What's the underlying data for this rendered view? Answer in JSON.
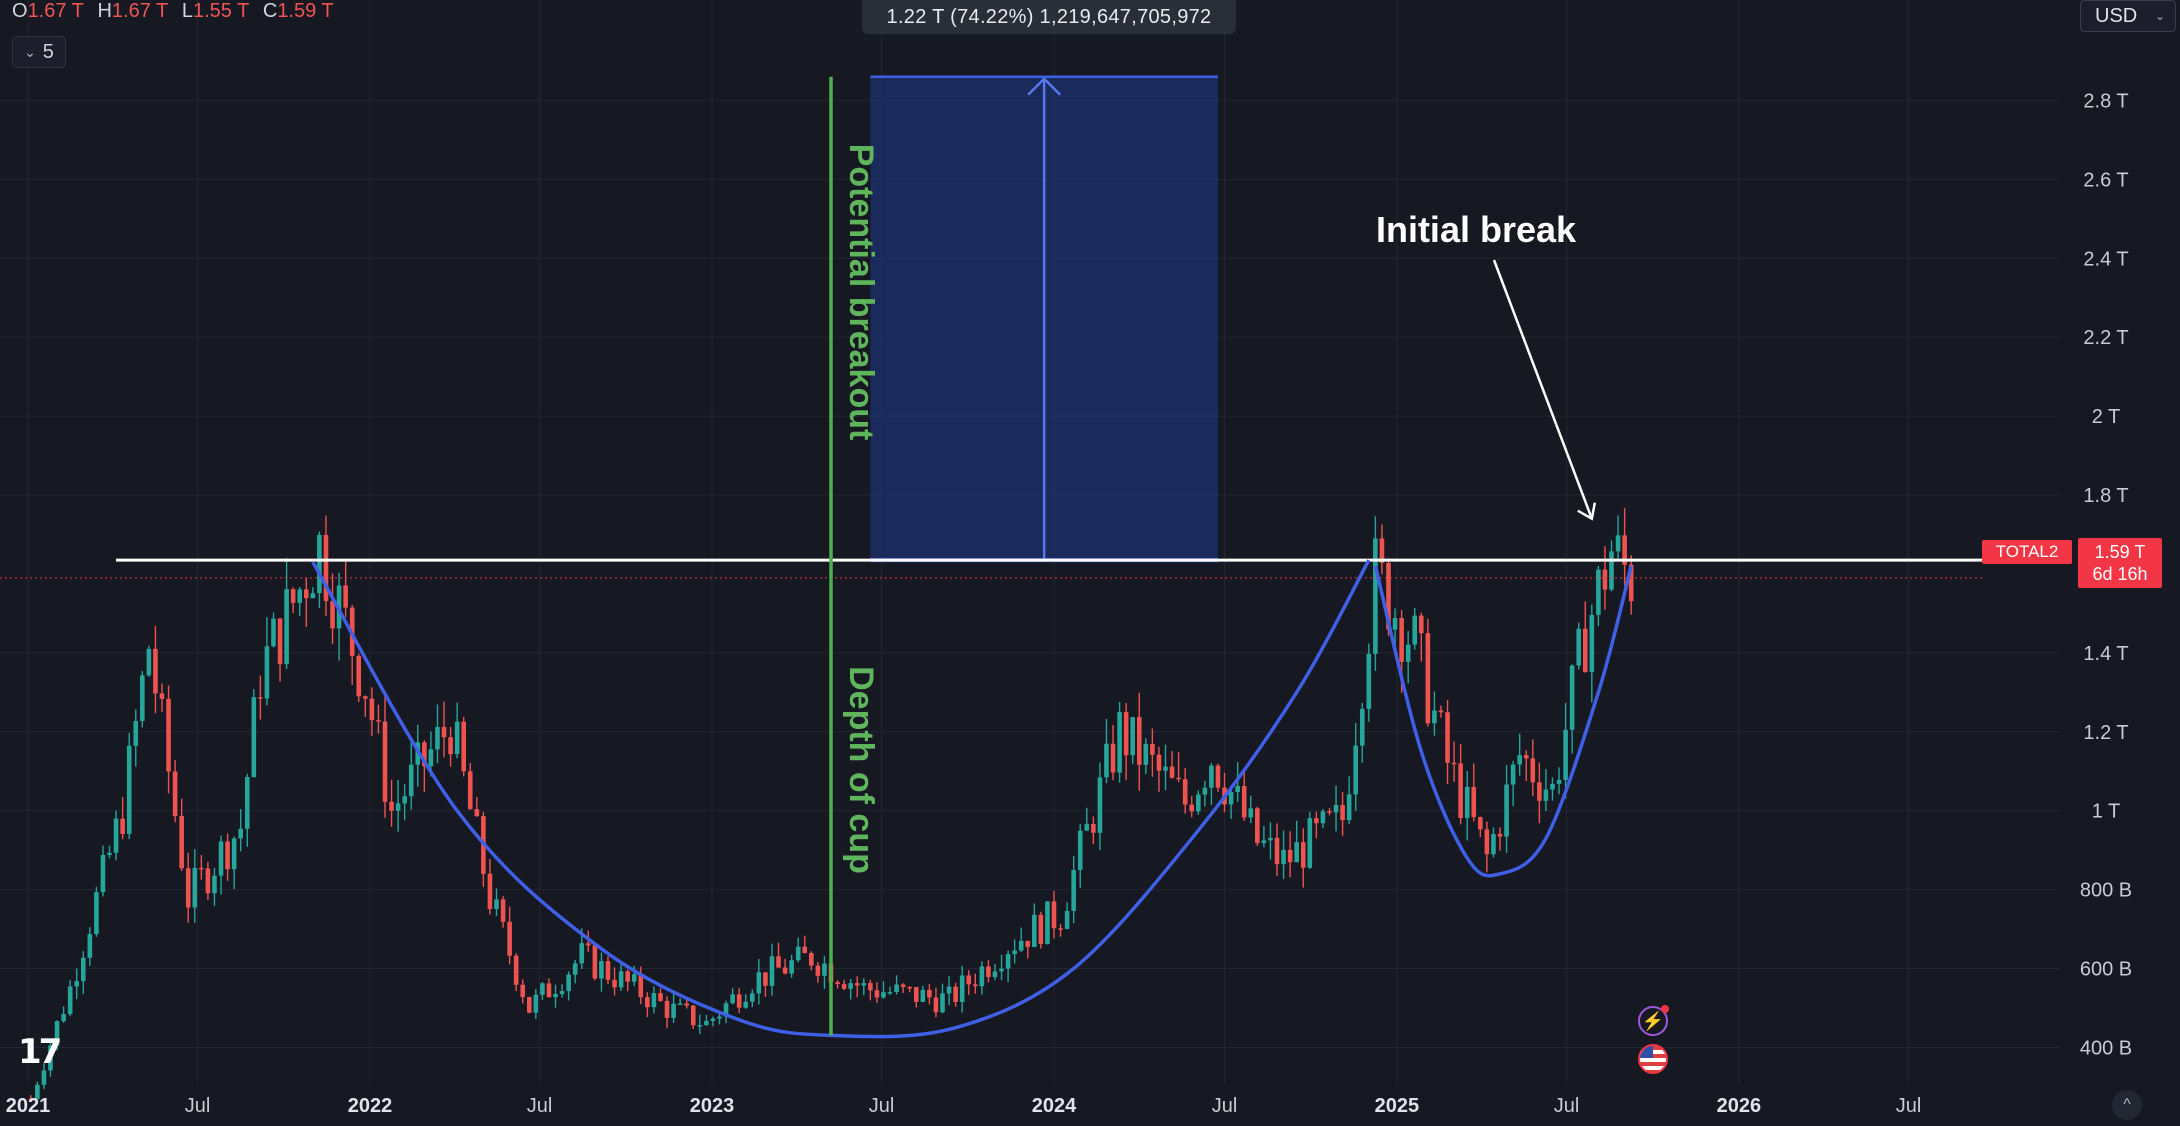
{
  "header": {
    "ohlc": [
      {
        "key": "O",
        "value": "1.67 T"
      },
      {
        "key": "H",
        "value": "1.67 T"
      },
      {
        "key": "L",
        "value": "1.55 T"
      },
      {
        "key": "C",
        "value": "1.59 T"
      }
    ],
    "interval_count": "5",
    "currency": "USD"
  },
  "measure": {
    "label": "1.22 T (74.22%) 1,219,647,705,972"
  },
  "price_tag": {
    "symbol": "TOTAL2",
    "price": "1.59 T",
    "countdown": "6d 16h"
  },
  "colors": {
    "background": "#161822",
    "grid": "#232633",
    "up": "#26a69a",
    "down": "#ef5350",
    "cup_curve": "#3f5fe6",
    "resistance": "#ffffff",
    "depth_line": "#4caf50",
    "target_box": "#1e3a8a"
  },
  "chart_data": {
    "type": "candlestick",
    "symbol": "TOTAL2",
    "interval": "weekly",
    "y_axis": {
      "tick_labels": [
        "2.8 T",
        "2.6 T",
        "2.4 T",
        "2.2 T",
        "2 T",
        "1.8 T",
        "1.4 T",
        "1.2 T",
        "1 T",
        "800 B",
        "600 B",
        "400 B"
      ],
      "tick_values": [
        2.8,
        2.6,
        2.4,
        2.2,
        2.0,
        1.8,
        1.4,
        1.2,
        1.0,
        0.8,
        0.6,
        0.4
      ],
      "range": [
        0.2,
        2.88
      ],
      "unit": "T"
    },
    "x_axis": {
      "tick_labels": [
        "2021",
        "Jul",
        "2022",
        "Jul",
        "2023",
        "Jul",
        "2024",
        "Jul",
        "2025",
        "Jul",
        "2026",
        "Jul"
      ],
      "tick_dates": [
        "2021-01-01",
        "2021-07-01",
        "2022-01-01",
        "2022-07-01",
        "2023-01-01",
        "2023-07-01",
        "2024-01-01",
        "2024-07-01",
        "2025-01-01",
        "2025-07-01",
        "2026-01-01",
        "2026-07-01"
      ],
      "bold_labels": [
        "2021",
        "2022",
        "2023",
        "2024",
        "2025",
        "2026"
      ],
      "range": [
        "2021-01-01",
        "2026-12-31"
      ]
    },
    "grid": true,
    "price_anchors": [
      {
        "date": "2021-01-04",
        "value": 0.27
      },
      {
        "date": "2021-02-15",
        "value": 0.55
      },
      {
        "date": "2021-04-12",
        "value": 1.0
      },
      {
        "date": "2021-05-10",
        "value": 1.42
      },
      {
        "date": "2021-06-21",
        "value": 0.78
      },
      {
        "date": "2021-08-16",
        "value": 0.96
      },
      {
        "date": "2021-09-06",
        "value": 1.35
      },
      {
        "date": "2021-11-08",
        "value": 1.67
      },
      {
        "date": "2021-12-27",
        "value": 1.32
      },
      {
        "date": "2022-01-24",
        "value": 1.0
      },
      {
        "date": "2022-03-28",
        "value": 1.22
      },
      {
        "date": "2022-05-09",
        "value": 0.78
      },
      {
        "date": "2022-06-20",
        "value": 0.5
      },
      {
        "date": "2022-08-15",
        "value": 0.63
      },
      {
        "date": "2022-11-14",
        "value": 0.5
      },
      {
        "date": "2022-12-26",
        "value": 0.46
      },
      {
        "date": "2023-02-13",
        "value": 0.57
      },
      {
        "date": "2023-04-17",
        "value": 0.63
      },
      {
        "date": "2023-06-12",
        "value": 0.55
      },
      {
        "date": "2023-09-11",
        "value": 0.52
      },
      {
        "date": "2023-11-13",
        "value": 0.66
      },
      {
        "date": "2024-01-08",
        "value": 0.74
      },
      {
        "date": "2024-03-11",
        "value": 1.2
      },
      {
        "date": "2024-05-20",
        "value": 1.02
      },
      {
        "date": "2024-06-17",
        "value": 1.14
      },
      {
        "date": "2024-08-05",
        "value": 0.92
      },
      {
        "date": "2024-09-02",
        "value": 0.87
      },
      {
        "date": "2024-11-04",
        "value": 0.98
      },
      {
        "date": "2024-12-09",
        "value": 1.6
      },
      {
        "date": "2025-01-20",
        "value": 1.42
      },
      {
        "date": "2025-02-24",
        "value": 1.12
      },
      {
        "date": "2025-04-07",
        "value": 0.88
      },
      {
        "date": "2025-05-12",
        "value": 1.14
      },
      {
        "date": "2025-06-16",
        "value": 1.05
      },
      {
        "date": "2025-07-21",
        "value": 1.45
      },
      {
        "date": "2025-08-18",
        "value": 1.66
      },
      {
        "date": "2025-09-08",
        "value": 1.59
      }
    ],
    "resistance_line": {
      "value": 1.635,
      "from": "2021-04-05",
      "to": "2026-09-21"
    },
    "last_price_line": {
      "value": 1.59
    },
    "cup_curve": [
      {
        "date": "2021-11-01",
        "value": 1.63
      },
      {
        "date": "2022-04-04",
        "value": 1.0
      },
      {
        "date": "2022-09-05",
        "value": 0.65
      },
      {
        "date": "2023-01-30",
        "value": 0.47
      },
      {
        "date": "2023-05-15",
        "value": 0.43
      },
      {
        "date": "2023-09-18",
        "value": 0.45
      },
      {
        "date": "2024-01-22",
        "value": 0.6
      },
      {
        "date": "2024-06-03",
        "value": 0.95
      },
      {
        "date": "2024-09-16",
        "value": 1.3
      },
      {
        "date": "2024-12-02",
        "value": 1.635
      }
    ],
    "handle_curve": [
      {
        "date": "2024-12-09",
        "value": 1.62
      },
      {
        "date": "2025-01-27",
        "value": 1.15
      },
      {
        "date": "2025-03-17",
        "value": 0.88
      },
      {
        "date": "2025-04-21",
        "value": 0.84
      },
      {
        "date": "2025-06-09",
        "value": 0.93
      },
      {
        "date": "2025-08-04",
        "value": 1.3
      },
      {
        "date": "2025-09-08",
        "value": 1.62
      }
    ],
    "depth_line": {
      "date": "2023-05-08",
      "from": 0.43,
      "to": 2.86
    },
    "target_box": {
      "from_date": "2023-06-19",
      "to_date": "2024-06-24",
      "bottom": 1.635,
      "top": 2.86
    },
    "annotations": {
      "potential_breakout": "Potential breakout",
      "depth_of_cup": "Depth of cup",
      "initial_break": "Initial break"
    },
    "initial_break_arrow": {
      "tip_date": "2025-07-28",
      "tip_value": 1.74
    }
  }
}
